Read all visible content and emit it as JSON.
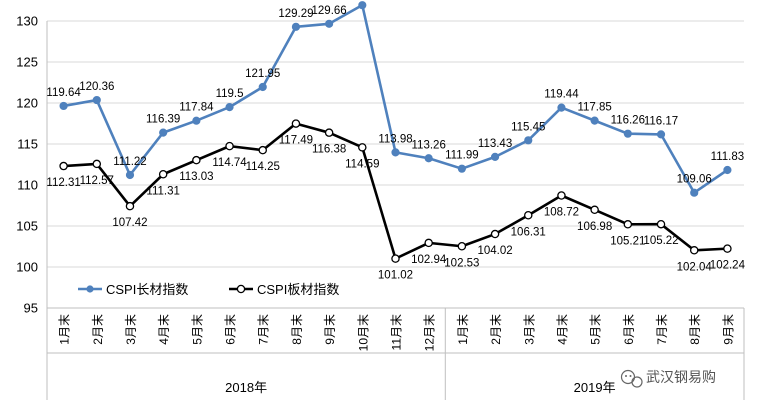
{
  "chart_data": {
    "type": "line",
    "ylim": [
      95,
      130
    ],
    "yticks": [
      95,
      100,
      105,
      110,
      115,
      120,
      125,
      130
    ],
    "grid": true,
    "legend_position": "bottom-left",
    "categories": [
      "1月末",
      "2月末",
      "3月末",
      "4月末",
      "5月末",
      "6月末",
      "7月末",
      "8月末",
      "9月末",
      "10月末",
      "11月末",
      "12月末",
      "1月末",
      "2月末",
      "3月末",
      "4月末",
      "5月末",
      "6月末",
      "7月末",
      "8月末",
      "9月末"
    ],
    "groups": [
      {
        "label": "2018年",
        "count": 12
      },
      {
        "label": "2019年",
        "count": 9
      }
    ],
    "series": [
      {
        "name": "CSPI长材指数",
        "color": "#4f81bd",
        "values": [
          119.64,
          120.36,
          111.22,
          116.39,
          117.84,
          119.5,
          121.95,
          129.29,
          129.66,
          131.93,
          113.98,
          113.26,
          111.99,
          113.43,
          115.45,
          119.44,
          117.85,
          116.26,
          116.17,
          109.06,
          111.83
        ]
      },
      {
        "name": "CSPI板材指数",
        "color": "#000000",
        "values": [
          112.31,
          112.57,
          107.42,
          111.31,
          113.03,
          114.74,
          114.25,
          117.49,
          116.38,
          114.59,
          101.02,
          102.94,
          102.53,
          104.02,
          106.31,
          108.72,
          106.98,
          105.21,
          105.22,
          102.04,
          102.24
        ]
      }
    ],
    "watermark": "武汉钢易购"
  }
}
